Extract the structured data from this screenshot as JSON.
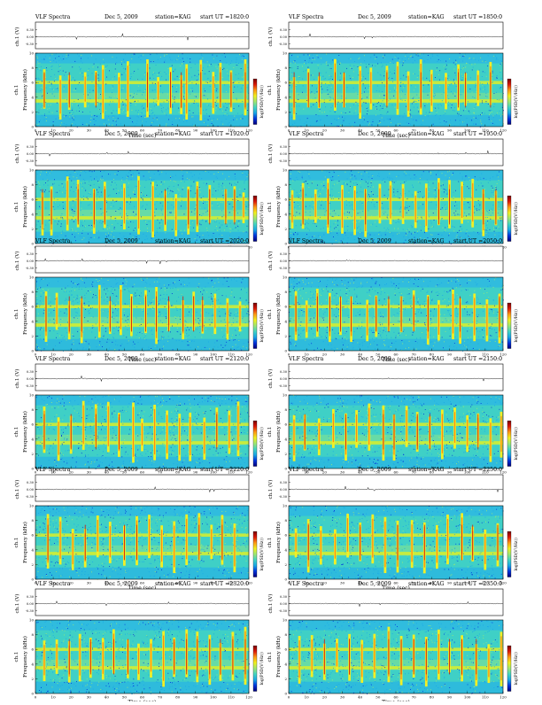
{
  "header_labels": {
    "title": "VLF Spectra",
    "date": "Dec 5, 2009",
    "station": "station=KAG",
    "start_prefix": "start  UT  ="
  },
  "axis_labels": {
    "waveform_ylabel": "ch.1 (V)",
    "freq_ylabel": "Frequency  (kHz)",
    "channel": "ch.1",
    "xlabel": "Time  (sec)",
    "colorbar_label": "log(PSD(V²/Hz))"
  },
  "colormap": [
    "#00007a",
    "#0033dd",
    "#1aa7e8",
    "#43d6c4",
    "#9fe874",
    "#f2f21f",
    "#ff9a16",
    "#dd1a0a",
    "#7a0000"
  ],
  "chart_data": [
    {
      "type": "heatmap",
      "title": "VLF Spectra",
      "date": "Dec 5, 2009",
      "station": "KAG",
      "start_ut": "1820:0",
      "xlabel": "Time  (sec)",
      "ylabel": "Frequency  (kHz)",
      "xlim": [
        0,
        120
      ],
      "ylim": [
        0,
        10
      ],
      "xticks": [
        0,
        10,
        20,
        30,
        40,
        50,
        60,
        70,
        80,
        90,
        100,
        110,
        120
      ],
      "yticks": [
        0,
        2,
        4,
        6,
        8,
        10
      ],
      "waveform_yticks": [
        "0.30",
        "0.00",
        "-0.30"
      ],
      "bands_khz": [
        3.5,
        6.0
      ],
      "sferic_times_s": [
        5,
        14,
        19,
        28,
        34,
        38,
        47,
        52,
        63,
        69,
        76,
        82,
        85,
        93,
        100,
        104,
        110,
        118
      ]
    },
    {
      "type": "heatmap",
      "title": "VLF Spectra",
      "date": "Dec 5, 2009",
      "station": "KAG",
      "start_ut": "1850:0",
      "xlabel": "Time  (sec)",
      "ylabel": "Frequency  (kHz)",
      "xlim": [
        0,
        120
      ],
      "ylim": [
        0,
        10
      ],
      "xticks": [
        0,
        10,
        20,
        30,
        40,
        50,
        60,
        70,
        80,
        90,
        100,
        110,
        120
      ],
      "yticks": [
        0,
        2,
        4,
        6,
        8,
        10
      ],
      "waveform_yticks": [
        "0.30",
        "0.00",
        "-0.30"
      ],
      "bands_khz": [
        3.5,
        6.0
      ],
      "sferic_times_s": [
        3,
        11,
        17,
        26,
        31,
        40,
        46,
        55,
        61,
        67,
        74,
        80,
        88,
        95,
        99,
        106,
        113
      ]
    },
    {
      "type": "heatmap",
      "title": "VLF Spectra",
      "date": "Dec 5, 2009",
      "station": "KAG",
      "start_ut": "1920:0",
      "xlabel": "Time  (sec)",
      "ylabel": "Frequency  (kHz)",
      "xlim": [
        0,
        120
      ],
      "ylim": [
        0,
        10
      ],
      "xticks": [
        0,
        10,
        20,
        30,
        40,
        50,
        60,
        70,
        80,
        90,
        100,
        110,
        120
      ],
      "yticks": [
        0,
        2,
        4,
        6,
        8,
        10
      ],
      "waveform_yticks": [
        "0.30",
        "0.00",
        "-0.30"
      ],
      "bands_khz": [
        3.5,
        6.0
      ],
      "sferic_times_s": [
        4,
        9,
        18,
        24,
        33,
        39,
        50,
        58,
        66,
        73,
        79,
        86,
        91,
        98,
        107,
        112,
        117
      ]
    },
    {
      "type": "heatmap",
      "title": "VLF Spectra",
      "date": "Dec 5, 2009",
      "station": "KAG",
      "start_ut": "1950:0",
      "xlabel": "Time  (sec)",
      "ylabel": "Frequency  (kHz)",
      "xlim": [
        0,
        120
      ],
      "ylim": [
        0,
        10
      ],
      "xticks": [
        0,
        10,
        20,
        30,
        40,
        50,
        60,
        70,
        80,
        90,
        100,
        110,
        120
      ],
      "yticks": [
        0,
        2,
        4,
        6,
        8,
        10
      ],
      "waveform_yticks": [
        "0.30",
        "0.00",
        "-0.30"
      ],
      "bands_khz": [
        3.5,
        6.0
      ],
      "sferic_times_s": [
        2,
        8,
        15,
        22,
        30,
        37,
        43,
        51,
        57,
        64,
        71,
        77,
        84,
        90,
        97,
        103,
        109,
        116
      ]
    },
    {
      "type": "heatmap",
      "title": "VLF Spectra",
      "date": "Dec 5, 2009",
      "station": "KAG",
      "start_ut": "2020:0",
      "xlabel": "Time  (sec)",
      "ylabel": "Frequency  (kHz)",
      "xlim": [
        0,
        120
      ],
      "ylim": [
        0,
        10
      ],
      "xticks": [
        0,
        10,
        20,
        30,
        40,
        50,
        60,
        70,
        80,
        90,
        100,
        110,
        120
      ],
      "yticks": [
        0,
        2,
        4,
        6,
        8,
        10
      ],
      "waveform_yticks": [
        "0.30",
        "0.00",
        "-0.30"
      ],
      "bands_khz": [
        3.5,
        6.0
      ],
      "sferic_times_s": [
        6,
        12,
        19,
        26,
        36,
        42,
        48,
        54,
        62,
        68,
        75,
        83,
        89,
        94,
        101,
        108,
        115
      ]
    },
    {
      "type": "heatmap",
      "title": "VLF Spectra",
      "date": "Dec 5, 2009",
      "station": "KAG",
      "start_ut": "2050:0",
      "xlabel": "Time  (sec)",
      "ylabel": "Frequency  (kHz)",
      "xlim": [
        0,
        120
      ],
      "ylim": [
        0,
        10
      ],
      "xticks": [
        0,
        10,
        20,
        30,
        40,
        50,
        60,
        70,
        80,
        90,
        100,
        110,
        120
      ],
      "yticks": [
        0,
        2,
        4,
        6,
        8,
        10
      ],
      "waveform_yticks": [
        "0.30",
        "0.00",
        "-0.30"
      ],
      "bands_khz": [
        3.5,
        6.0
      ],
      "sferic_times_s": [
        4,
        10,
        16,
        23,
        29,
        35,
        44,
        49,
        56,
        63,
        70,
        78,
        84,
        92,
        96,
        104,
        111,
        118
      ]
    },
    {
      "type": "heatmap",
      "title": "VLF Spectra",
      "date": "Dec 5, 2009",
      "station": "KAG",
      "start_ut": "2120:0",
      "xlabel": "Time  (sec)",
      "ylabel": "Frequency  (kHz)",
      "xlim": [
        0,
        120
      ],
      "ylim": [
        0,
        10
      ],
      "xticks": [
        0,
        10,
        20,
        30,
        40,
        50,
        60,
        70,
        80,
        90,
        100,
        110,
        120
      ],
      "yticks": [
        0,
        2,
        4,
        6,
        8,
        10
      ],
      "waveform_yticks": [
        "0.30",
        "0.00",
        "-0.30"
      ],
      "bands_khz": [
        3.5,
        6.0
      ],
      "sferic_times_s": [
        5,
        13,
        20,
        27,
        34,
        41,
        47,
        55,
        60,
        67,
        74,
        81,
        87,
        95,
        102,
        109,
        114
      ]
    },
    {
      "type": "heatmap",
      "title": "VLF Spectra",
      "date": "Dec 5, 2009",
      "station": "KAG",
      "start_ut": "2150:0",
      "xlabel": "Time  (sec)",
      "ylabel": "Frequency  (kHz)",
      "xlim": [
        0,
        120
      ],
      "ylim": [
        0,
        10
      ],
      "xticks": [
        0,
        10,
        20,
        30,
        40,
        50,
        60,
        70,
        80,
        90,
        100,
        110,
        120
      ],
      "yticks": [
        0,
        2,
        4,
        6,
        8,
        10
      ],
      "waveform_yticks": [
        "0.30",
        "0.00",
        "-0.30"
      ],
      "bands_khz": [
        3.5,
        6.0
      ],
      "sferic_times_s": [
        3,
        9,
        17,
        25,
        32,
        38,
        45,
        53,
        59,
        66,
        72,
        79,
        86,
        93,
        100,
        106,
        113,
        119
      ]
    },
    {
      "type": "heatmap",
      "title": "VLF Spectra",
      "date": "Dec 5, 2009",
      "station": "KAG",
      "start_ut": "2220:0",
      "xlabel": "Time  (sec)",
      "ylabel": "Frequency  (kHz)",
      "xlim": [
        0,
        120
      ],
      "ylim": [
        0,
        10
      ],
      "xticks": [
        0,
        10,
        20,
        30,
        40,
        50,
        60,
        70,
        80,
        90,
        100,
        110,
        120
      ],
      "yticks": [
        0,
        2,
        4,
        6,
        8,
        10
      ],
      "waveform_yticks": [
        "0.30",
        "0.00",
        "-0.30"
      ],
      "bands_khz": [
        3.5,
        6.0
      ],
      "sferic_times_s": [
        7,
        14,
        21,
        28,
        35,
        42,
        50,
        57,
        64,
        71,
        78,
        85,
        92,
        99,
        105,
        112
      ]
    },
    {
      "type": "heatmap",
      "title": "VLF Spectra",
      "date": "Dec 5, 2009",
      "station": "KAG",
      "start_ut": "2250:0",
      "xlabel": "Time  (sec)",
      "ylabel": "Frequency  (kHz)",
      "xlim": [
        0,
        120
      ],
      "ylim": [
        0,
        10
      ],
      "xticks": [
        0,
        10,
        20,
        30,
        40,
        50,
        60,
        70,
        80,
        90,
        100,
        110,
        120
      ],
      "yticks": [
        0,
        2,
        4,
        6,
        8,
        10
      ],
      "waveform_yticks": [
        "0.30",
        "0.00",
        "-0.30"
      ],
      "bands_khz": [
        3.5,
        6.0
      ],
      "sferic_times_s": [
        4,
        11,
        18,
        26,
        33,
        40,
        47,
        54,
        61,
        69,
        76,
        83,
        89,
        97,
        103,
        110,
        117
      ]
    },
    {
      "type": "heatmap",
      "title": "VLF Spectra",
      "date": "Dec 5, 2009",
      "station": "KAG",
      "start_ut": "2320:0",
      "xlabel": "Time  (sec)",
      "ylabel": "Frequency  (kHz)",
      "xlim": [
        0,
        120
      ],
      "ylim": [
        0,
        10
      ],
      "xticks": [
        0,
        10,
        20,
        30,
        40,
        50,
        60,
        70,
        80,
        90,
        100,
        110,
        120
      ],
      "yticks": [
        0,
        2,
        4,
        6,
        8,
        10
      ],
      "waveform_yticks": [
        "0.30",
        "0.00",
        "-0.30"
      ],
      "bands_khz": [
        3.5,
        6.0
      ],
      "sferic_times_s": [
        5,
        12,
        19,
        25,
        31,
        38,
        44,
        52,
        58,
        65,
        72,
        78,
        85,
        91,
        98,
        104,
        111,
        118
      ]
    },
    {
      "type": "heatmap",
      "title": "VLF Spectra",
      "date": "Dec 5, 2009",
      "station": "KAG",
      "start_ut": "2350:0",
      "xlabel": "Time  (sec)",
      "ylabel": "Frequency  (kHz)",
      "xlim": [
        0,
        120
      ],
      "ylim": [
        0,
        10
      ],
      "xticks": [
        0,
        10,
        20,
        30,
        40,
        50,
        60,
        70,
        80,
        90,
        100,
        110,
        120
      ],
      "yticks": [
        0,
        2,
        4,
        6,
        8,
        10
      ],
      "waveform_yticks": [
        "0.30",
        "0.00",
        "-0.30"
      ],
      "bands_khz": [
        3.5,
        6.0
      ],
      "sferic_times_s": [
        6,
        13,
        20,
        27,
        34,
        41,
        48,
        56,
        63,
        70,
        77,
        84,
        90,
        97,
        105,
        112,
        119
      ]
    }
  ]
}
